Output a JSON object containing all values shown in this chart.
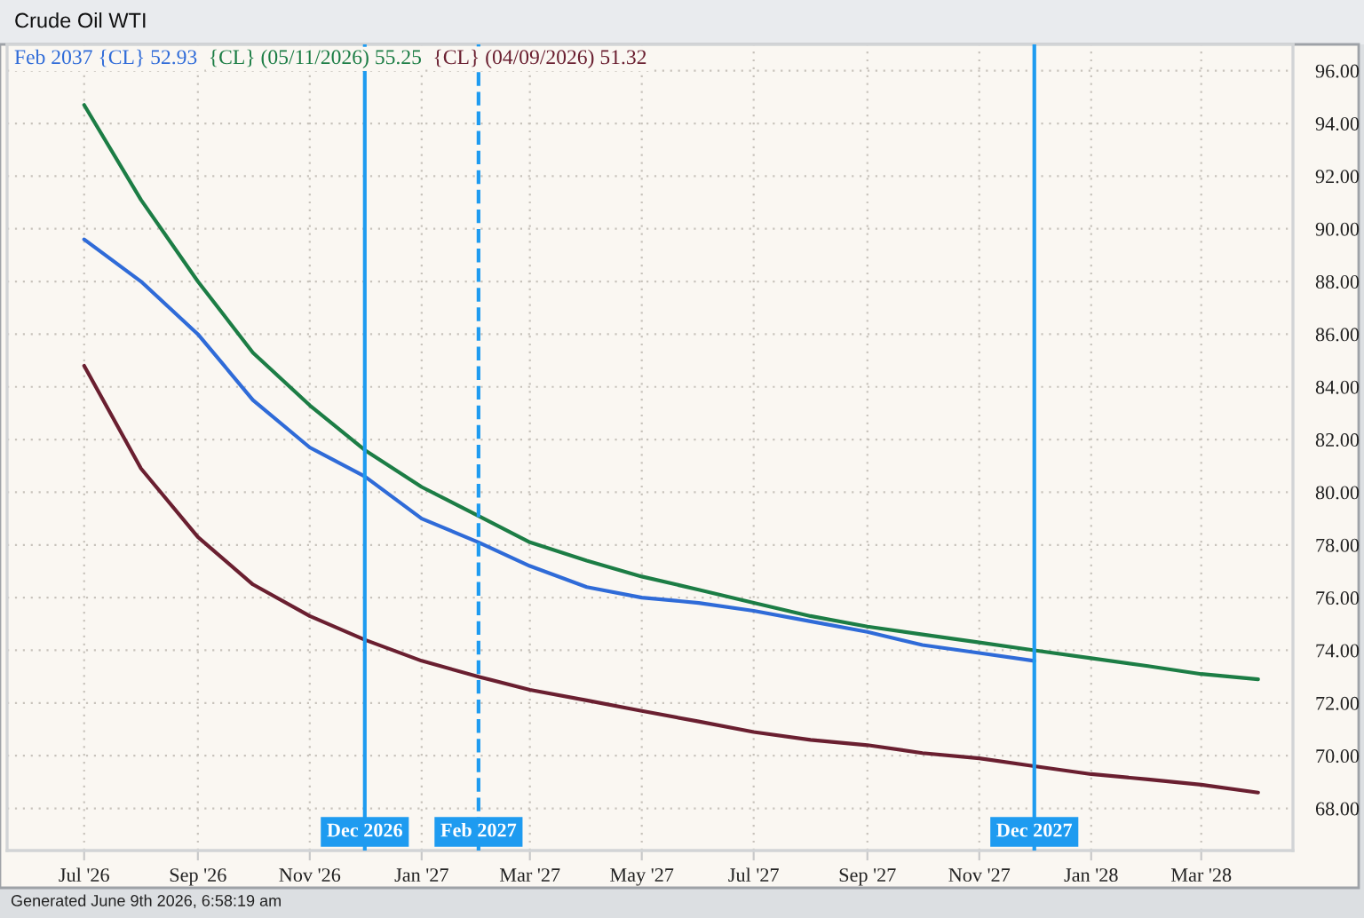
{
  "chart_data": {
    "type": "line",
    "title": "Crude Oil WTI",
    "annotations": [
      "Generated June 9th 2026, 6:58:19 am"
    ],
    "x": [
      "2026-07",
      "2026-08",
      "2026-09",
      "2026-10",
      "2026-11",
      "2026-12",
      "2027-01",
      "2027-02",
      "2027-03",
      "2027-04",
      "2027-05",
      "2027-06",
      "2027-07",
      "2027-08",
      "2027-09",
      "2027-10",
      "2027-11",
      "2027-12",
      "2028-01",
      "2028-02",
      "2028-03",
      "2028-04"
    ],
    "series": [
      {
        "name": "Feb 2037 {CL} 52.93",
        "color": "#2f6bd8",
        "values": [
          89.6,
          88.0,
          86.0,
          83.5,
          81.7,
          80.6,
          79.0,
          78.1,
          77.2,
          76.4,
          76.0,
          75.8,
          75.5,
          75.1,
          74.7,
          74.2,
          73.9,
          73.6,
          null,
          null,
          null,
          null
        ]
      },
      {
        "name": "{CL} (05/11/2026) 55.25",
        "color": "#1c7d45",
        "values": [
          94.7,
          91.1,
          88.0,
          85.3,
          83.3,
          81.6,
          80.2,
          79.1,
          78.1,
          77.4,
          76.8,
          76.3,
          75.8,
          75.3,
          74.9,
          74.6,
          74.3,
          74.0,
          73.7,
          73.4,
          73.1,
          72.9
        ]
      },
      {
        "name": "{CL} (04/09/2026) 51.32",
        "color": "#6a1f30",
        "values": [
          84.8,
          80.9,
          78.3,
          76.5,
          75.3,
          74.4,
          73.6,
          73.0,
          72.5,
          72.1,
          71.7,
          71.3,
          70.9,
          70.6,
          70.4,
          70.1,
          69.9,
          69.6,
          69.3,
          69.1,
          68.9,
          68.6
        ]
      }
    ],
    "xlim": [
      "2026-05-20",
      "2028-04-20"
    ],
    "xticks": [
      {
        "value": "2026-07",
        "label": "Jul '26"
      },
      {
        "value": "2026-09",
        "label": "Sep '26"
      },
      {
        "value": "2026-11",
        "label": "Nov '26"
      },
      {
        "value": "2027-01",
        "label": "Jan '27"
      },
      {
        "value": "2027-03",
        "label": "Mar '27"
      },
      {
        "value": "2027-05",
        "label": "May '27"
      },
      {
        "value": "2027-07",
        "label": "Jul '27"
      },
      {
        "value": "2027-09",
        "label": "Sep '27"
      },
      {
        "value": "2027-11",
        "label": "Nov '27"
      },
      {
        "value": "2028-01",
        "label": "Jan '28"
      },
      {
        "value": "2028-03",
        "label": "Mar '28"
      }
    ],
    "ylim": [
      66.4,
      97.0
    ],
    "yticks": [
      {
        "value": 68,
        "label": "68.00"
      },
      {
        "value": 70,
        "label": "70.00"
      },
      {
        "value": 72,
        "label": "72.00"
      },
      {
        "value": 74,
        "label": "74.00"
      },
      {
        "value": 76,
        "label": "76.00"
      },
      {
        "value": 78,
        "label": "78.00"
      },
      {
        "value": 80,
        "label": "80.00"
      },
      {
        "value": 82,
        "label": "82.00"
      },
      {
        "value": 84,
        "label": "84.00"
      },
      {
        "value": 86,
        "label": "86.00"
      },
      {
        "value": 88,
        "label": "88.00"
      },
      {
        "value": 90,
        "label": "90.00"
      },
      {
        "value": 92,
        "label": "92.00"
      },
      {
        "value": 94,
        "label": "94.00"
      },
      {
        "value": 96,
        "label": "96.00"
      }
    ],
    "ref_lines": [
      {
        "axis": "x",
        "value": "2026-12",
        "label": "Dec 2026",
        "color": "#1e9bf0",
        "line_style": "solid"
      },
      {
        "axis": "x",
        "value": "2027-02",
        "label": "Feb 2027",
        "color": "#1e9bf0",
        "line_style": "dashed"
      },
      {
        "axis": "x",
        "value": "2027-12",
        "label": "Dec 2027",
        "color": "#1e9bf0",
        "line_style": "solid"
      }
    ],
    "grid": true,
    "legend": "top left",
    "line_style": "solid"
  }
}
